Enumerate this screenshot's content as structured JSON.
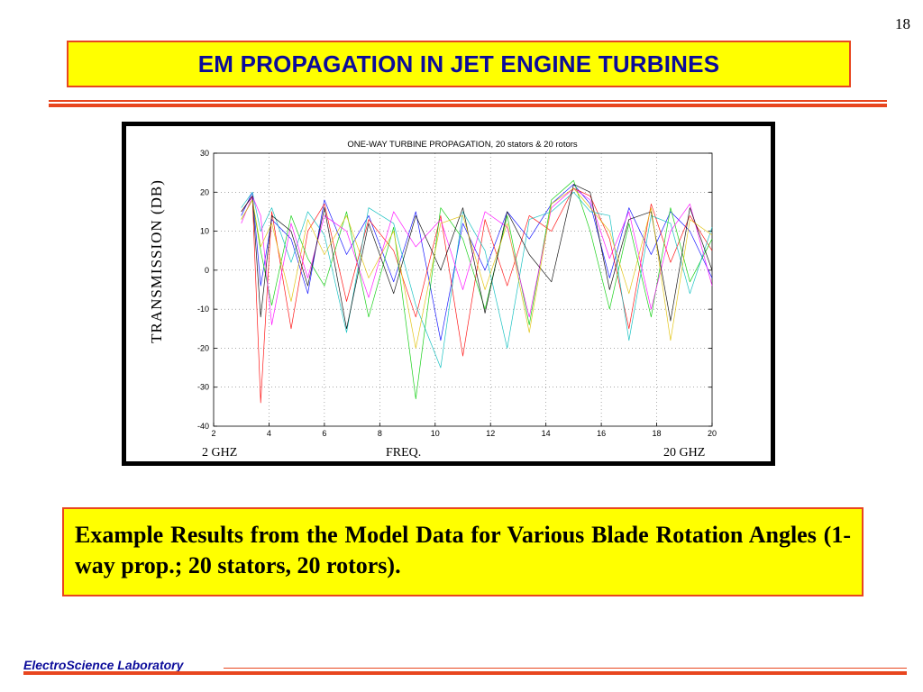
{
  "slide": {
    "page_number": "18",
    "title": "EM PROPAGATION IN JET ENGINE TURBINES",
    "caption": "Example Results from the Model Data for Various Blade Rotation Angles (1-way prop.; 20 stators, 20 rotors).",
    "footer": "ElectroScience Laboratory"
  },
  "colors": {
    "title_text": "#0b0b9a",
    "box_fill": "#ffff00",
    "accent_rule": "#e8461f",
    "footer_text": "#0b0b9a"
  },
  "chart_data": {
    "type": "line",
    "title": "ONE-WAY TURBINE PROPAGATION, 20 stators & 20 rotors",
    "xlabel": "FREQ.",
    "ylabel": "TRANSMISSION (DB)",
    "x_left_label": "2 GHZ",
    "x_right_label": "20 GHZ",
    "xlim": [
      2,
      20
    ],
    "ylim": [
      -40,
      30
    ],
    "xticks": [
      "2",
      "4",
      "6",
      "8",
      "10",
      "12",
      "14",
      "16",
      "18",
      "20"
    ],
    "yticks": [
      "30",
      "20",
      "10",
      "0",
      "-10",
      "-20",
      "-30",
      "-40"
    ],
    "grid": true,
    "series": [
      {
        "color": "#0000ff",
        "x": [
          3.0,
          3.4,
          3.7,
          4.1,
          4.8,
          5.4,
          6.0,
          6.8,
          7.6,
          8.5,
          9.3,
          10.2,
          11.0,
          11.8,
          12.6,
          13.4,
          14.2,
          15.0,
          15.6,
          16.3,
          17.0,
          17.8,
          18.5,
          19.2,
          20.0
        ],
        "values": [
          14,
          20,
          -4,
          13,
          8,
          -6,
          18,
          4,
          14,
          -3,
          15,
          -18,
          12,
          0,
          15,
          8,
          17,
          22,
          17,
          -2,
          16,
          4,
          15,
          10,
          -2
        ]
      },
      {
        "color": "#ff0000",
        "x": [
          3.0,
          3.4,
          3.7,
          4.1,
          4.8,
          5.4,
          6.0,
          6.8,
          7.6,
          8.5,
          9.3,
          10.2,
          11.0,
          11.8,
          12.6,
          13.4,
          14.2,
          15.0,
          15.6,
          16.3,
          17.0,
          17.8,
          18.5,
          19.2,
          20.0
        ],
        "values": [
          15,
          19,
          -34,
          15,
          -15,
          10,
          17,
          -8,
          13,
          5,
          -12,
          14,
          -22,
          13,
          -4,
          14,
          10,
          21,
          19,
          8,
          -15,
          17,
          2,
          14,
          5
        ]
      },
      {
        "color": "#00cc00",
        "x": [
          3.0,
          3.4,
          3.7,
          4.1,
          4.8,
          5.4,
          6.0,
          6.8,
          7.6,
          8.5,
          9.3,
          10.2,
          11.0,
          11.8,
          12.6,
          13.4,
          14.2,
          15.0,
          15.6,
          16.3,
          17.0,
          17.8,
          18.5,
          19.2,
          20.0
        ],
        "values": [
          13,
          18,
          5,
          -9,
          14,
          3,
          -4,
          15,
          -12,
          11,
          -33,
          16,
          8,
          -10,
          14,
          -14,
          18,
          23,
          10,
          -10,
          12,
          -12,
          16,
          -3,
          8
        ]
      },
      {
        "color": "#00bbbb",
        "x": [
          3.0,
          3.4,
          3.7,
          4.1,
          4.8,
          5.4,
          6.0,
          6.8,
          7.6,
          8.5,
          9.3,
          10.2,
          11.0,
          11.8,
          12.6,
          13.4,
          14.2,
          15.0,
          15.6,
          16.3,
          17.0,
          17.8,
          18.5,
          19.2,
          20.0
        ],
        "values": [
          16,
          20,
          10,
          16,
          2,
          15,
          9,
          -16,
          16,
          12,
          -9,
          -25,
          15,
          5,
          -20,
          13,
          15,
          20,
          15,
          14,
          -18,
          14,
          12,
          -6,
          11
        ]
      },
      {
        "color": "#ff00ff",
        "x": [
          3.0,
          3.4,
          3.7,
          4.1,
          4.8,
          5.4,
          6.0,
          6.8,
          7.6,
          8.5,
          9.3,
          10.2,
          11.0,
          11.8,
          12.6,
          13.4,
          14.2,
          15.0,
          15.6,
          16.3,
          17.0,
          17.8,
          18.5,
          19.2,
          20.0
        ],
        "values": [
          12,
          19,
          14,
          -14,
          12,
          -2,
          14,
          10,
          -7,
          15,
          6,
          13,
          -5,
          15,
          11,
          -12,
          16,
          21,
          18,
          3,
          15,
          -10,
          10,
          17,
          -4
        ]
      },
      {
        "color": "#000000",
        "x": [
          3.0,
          3.4,
          3.7,
          4.1,
          4.8,
          5.4,
          6.0,
          6.8,
          7.6,
          8.5,
          9.3,
          10.2,
          11.0,
          11.8,
          12.6,
          13.4,
          14.2,
          15.0,
          15.6,
          16.3,
          17.0,
          17.8,
          18.5,
          19.2,
          20.0
        ],
        "values": [
          15,
          19,
          -12,
          14,
          10,
          -4,
          16,
          -15,
          12,
          -6,
          14,
          0,
          16,
          -11,
          15,
          4,
          -3,
          22,
          20,
          -5,
          13,
          15,
          -13,
          16,
          0
        ]
      },
      {
        "color": "#e0c000",
        "x": [
          3.0,
          3.4,
          3.7,
          4.1,
          4.8,
          5.4,
          6.0,
          6.8,
          7.6,
          8.5,
          9.3,
          10.2,
          11.0,
          11.8,
          12.6,
          13.4,
          14.2,
          15.0,
          15.6,
          16.3,
          17.0,
          17.8,
          18.5,
          19.2,
          20.0
        ],
        "values": [
          13,
          18,
          6,
          12,
          -8,
          13,
          4,
          14,
          -2,
          10,
          -20,
          12,
          14,
          -5,
          12,
          -16,
          17,
          21,
          16,
          10,
          -6,
          16,
          -18,
          13,
          9
        ]
      }
    ]
  }
}
